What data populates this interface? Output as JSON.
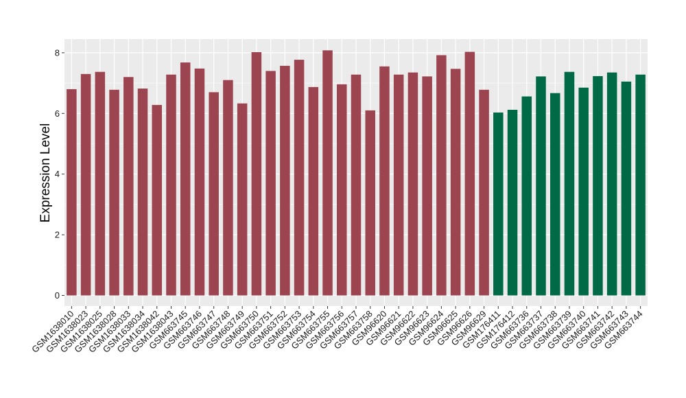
{
  "chart_data": {
    "type": "bar",
    "ylabel": "Expression Level",
    "xlabel": "",
    "ylim": [
      -0.35,
      8.45
    ],
    "yticks": [
      0,
      2,
      4,
      6,
      8
    ],
    "grid": true,
    "background_color": "#ebebeb",
    "grid_color": "#ffffff",
    "group_colors": {
      "group1": "#9c4450",
      "group2": "#006a47"
    },
    "categories": [
      "GSM1638010",
      "GSM1638023",
      "GSM1638025",
      "GSM1638028",
      "GSM1638033",
      "GSM1638034",
      "GSM1638042",
      "GSM1638043",
      "GSM663745",
      "GSM663746",
      "GSM663747",
      "GSM663748",
      "GSM663749",
      "GSM663750",
      "GSM663751",
      "GSM663752",
      "GSM663753",
      "GSM663754",
      "GSM663755",
      "GSM663756",
      "GSM663757",
      "GSM663758",
      "GSM96620",
      "GSM96621",
      "GSM96622",
      "GSM96623",
      "GSM96624",
      "GSM96625",
      "GSM96626",
      "GSM96629",
      "GSM176411",
      "GSM176412",
      "GSM663736",
      "GSM663737",
      "GSM663738",
      "GSM663739",
      "GSM663740",
      "GSM663741",
      "GSM663742",
      "GSM663743",
      "GSM663744"
    ],
    "values": [
      6.8,
      7.3,
      7.37,
      6.78,
      7.2,
      6.82,
      6.28,
      7.28,
      7.68,
      7.48,
      6.7,
      7.1,
      6.33,
      8.02,
      7.4,
      7.57,
      7.77,
      6.87,
      8.08,
      6.96,
      7.28,
      6.1,
      7.55,
      7.28,
      7.35,
      7.22,
      7.92,
      7.47,
      8.03,
      6.78,
      6.03,
      6.12,
      6.56,
      7.22,
      6.67,
      7.37,
      6.85,
      7.23,
      7.35,
      7.05,
      7.28
    ],
    "groups": [
      "group1",
      "group1",
      "group1",
      "group1",
      "group1",
      "group1",
      "group1",
      "group1",
      "group1",
      "group1",
      "group1",
      "group1",
      "group1",
      "group1",
      "group1",
      "group1",
      "group1",
      "group1",
      "group1",
      "group1",
      "group1",
      "group1",
      "group1",
      "group1",
      "group1",
      "group1",
      "group1",
      "group1",
      "group1",
      "group1",
      "group2",
      "group2",
      "group2",
      "group2",
      "group2",
      "group2",
      "group2",
      "group2",
      "group2",
      "group2",
      "group2"
    ]
  }
}
